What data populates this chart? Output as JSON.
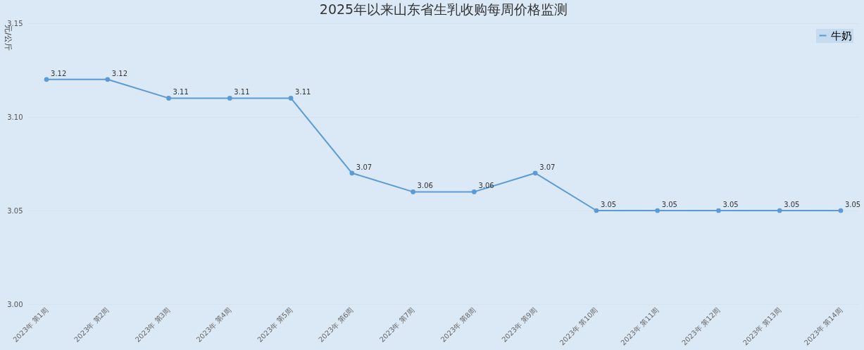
{
  "chart_data": {
    "type": "line",
    "title": "2025年以来山东省生乳收购每周价格监测",
    "ylabel": "元/公斤",
    "categories": [
      "2023年 第1周",
      "2023年 第2周",
      "2023年 第3周",
      "2023年 第4周",
      "2023年 第5周",
      "2023年 第6周",
      "2023年 第7周",
      "2023年 第8周",
      "2023年 第9周",
      "2023年 第10周",
      "2023年 第11周",
      "2023年 第12周",
      "2023年 第13周",
      "2023年 第14周"
    ],
    "series": [
      {
        "name": "牛奶",
        "color": "#5b9bd5",
        "values": [
          3.12,
          3.12,
          3.11,
          3.11,
          3.11,
          3.07,
          3.06,
          3.06,
          3.07,
          3.05,
          3.05,
          3.05,
          3.05,
          3.05
        ]
      }
    ],
    "ylim": [
      3.0,
      3.15
    ],
    "yticks": [
      {
        "value": 3.0,
        "label": "3.00"
      },
      3.05,
      {
        "value": 3.1,
        "label": "3.10"
      },
      3.15
    ],
    "grid": "y",
    "legend": "top right",
    "marker": "circle",
    "line_style": "solid",
    "data_labels": true
  }
}
